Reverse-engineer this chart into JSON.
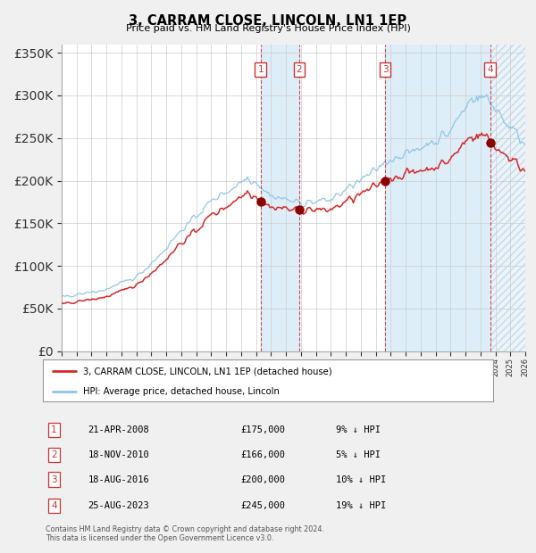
{
  "title": "3, CARRAM CLOSE, LINCOLN, LN1 1EP",
  "subtitle": "Price paid vs. HM Land Registry's House Price Index (HPI)",
  "footer": "Contains HM Land Registry data © Crown copyright and database right 2024.\nThis data is licensed under the Open Government Licence v3.0.",
  "legend_house": "3, CARRAM CLOSE, LINCOLN, LN1 1EP (detached house)",
  "legend_hpi": "HPI: Average price, detached house, Lincoln",
  "transactions": [
    {
      "num": 1,
      "date": "21-APR-2008",
      "price": 175000,
      "hpi_diff": "9% ↓ HPI",
      "year": 2008.3
    },
    {
      "num": 2,
      "date": "18-NOV-2010",
      "price": 166000,
      "hpi_diff": "5% ↓ HPI",
      "year": 2010.88
    },
    {
      "num": 3,
      "date": "18-AUG-2016",
      "price": 200000,
      "hpi_diff": "10% ↓ HPI",
      "year": 2016.63
    },
    {
      "num": 4,
      "date": "25-AUG-2023",
      "price": 245000,
      "hpi_diff": "19% ↓ HPI",
      "year": 2023.65
    }
  ],
  "ylim": [
    0,
    360000
  ],
  "xlim_start": 1995,
  "xlim_end": 2026,
  "hpi_color": "#8ec4e8",
  "house_color": "#d62728",
  "transaction_marker_color": "#8b0000",
  "vline_color": "#cc3333",
  "shade_color": "#ddeef8",
  "background_color": "#f0f0f0",
  "plot_bg": "#ffffff",
  "grid_color": "#cccccc"
}
